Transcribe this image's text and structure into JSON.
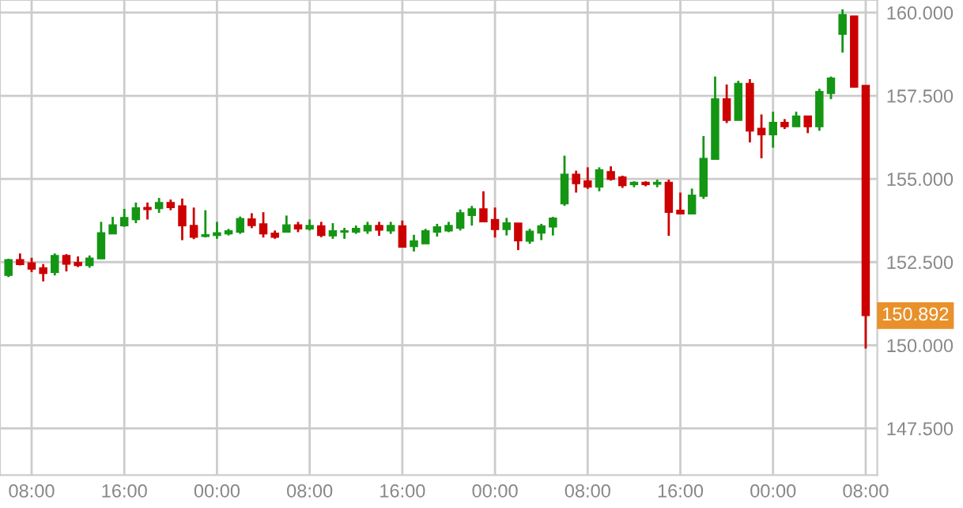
{
  "chart_data": {
    "type": "candlestick",
    "categories": [
      null,
      null,
      "08:00",
      null,
      null,
      null,
      null,
      null,
      null,
      null,
      "16:00",
      null,
      null,
      null,
      null,
      null,
      null,
      null,
      "00:00",
      null,
      null,
      null,
      null,
      null,
      null,
      null,
      "08:00",
      null,
      null,
      null,
      null,
      null,
      null,
      null,
      "16:00",
      null,
      null,
      null,
      null,
      null,
      null,
      null,
      "00:00",
      null,
      null,
      null,
      null,
      null,
      null,
      null,
      "08:00",
      null,
      null,
      null,
      null,
      null,
      null,
      null,
      "16:00",
      null,
      null,
      null,
      null,
      null,
      null,
      null,
      "00:00",
      null,
      null,
      null,
      null,
      null,
      null,
      null,
      "08:00"
    ],
    "ohlc": [
      [
        152.1,
        152.6,
        152.05,
        152.57
      ],
      [
        152.57,
        152.76,
        152.4,
        152.43
      ],
      [
        152.48,
        152.63,
        152.2,
        152.29
      ],
      [
        152.33,
        152.44,
        151.92,
        152.16
      ],
      [
        152.19,
        152.76,
        152.1,
        152.7
      ],
      [
        152.7,
        152.74,
        152.22,
        152.44
      ],
      [
        152.49,
        152.67,
        152.35,
        152.4
      ],
      [
        152.4,
        152.7,
        152.33,
        152.62
      ],
      [
        152.6,
        153.71,
        152.6,
        153.38
      ],
      [
        153.35,
        153.86,
        153.35,
        153.62
      ],
      [
        153.59,
        154.1,
        153.56,
        153.84
      ],
      [
        153.78,
        154.29,
        153.67,
        154.13
      ],
      [
        154.14,
        154.29,
        153.78,
        154.08
      ],
      [
        154.11,
        154.43,
        153.98,
        154.29
      ],
      [
        154.29,
        154.38,
        154.06,
        154.14
      ],
      [
        154.19,
        154.41,
        153.16,
        153.59
      ],
      [
        153.6,
        154.14,
        153.19,
        153.25
      ],
      [
        153.27,
        154.06,
        153.24,
        153.32
      ],
      [
        153.3,
        153.71,
        153.2,
        153.38
      ],
      [
        153.35,
        153.5,
        153.3,
        153.44
      ],
      [
        153.4,
        153.87,
        153.35,
        153.81
      ],
      [
        153.8,
        153.97,
        153.52,
        153.6
      ],
      [
        153.65,
        154.0,
        153.24,
        153.35
      ],
      [
        153.37,
        153.45,
        153.2,
        153.25
      ],
      [
        153.4,
        153.9,
        153.4,
        153.62
      ],
      [
        153.62,
        153.71,
        153.4,
        153.5
      ],
      [
        153.5,
        153.78,
        153.45,
        153.6
      ],
      [
        153.59,
        153.71,
        153.25,
        153.3
      ],
      [
        153.29,
        153.67,
        153.2,
        153.44
      ],
      [
        153.4,
        153.53,
        153.2,
        153.44
      ],
      [
        153.4,
        153.6,
        153.35,
        153.51
      ],
      [
        153.44,
        153.71,
        153.35,
        153.6
      ],
      [
        153.6,
        153.71,
        153.29,
        153.46
      ],
      [
        153.44,
        153.71,
        153.35,
        153.6
      ],
      [
        153.59,
        153.75,
        152.95,
        152.95
      ],
      [
        152.97,
        153.32,
        152.82,
        153.14
      ],
      [
        153.05,
        153.5,
        153.05,
        153.44
      ],
      [
        153.4,
        153.65,
        153.27,
        153.56
      ],
      [
        153.44,
        153.71,
        153.4,
        153.6
      ],
      [
        153.52,
        154.08,
        153.45,
        153.98
      ],
      [
        153.9,
        154.19,
        153.6,
        154.1
      ],
      [
        154.1,
        154.63,
        153.71,
        153.71
      ],
      [
        153.78,
        154.14,
        153.24,
        153.48
      ],
      [
        153.48,
        153.83,
        153.3,
        153.68
      ],
      [
        153.67,
        153.67,
        152.86,
        153.14
      ],
      [
        153.13,
        153.5,
        153.05,
        153.43
      ],
      [
        153.37,
        153.65,
        153.16,
        153.59
      ],
      [
        153.56,
        153.86,
        153.3,
        153.82
      ],
      [
        154.25,
        155.7,
        154.19,
        155.14
      ],
      [
        155.14,
        155.25,
        154.59,
        154.86
      ],
      [
        154.94,
        155.35,
        154.7,
        154.76
      ],
      [
        154.76,
        155.35,
        154.63,
        155.27
      ],
      [
        155.22,
        155.38,
        154.95,
        154.99
      ],
      [
        155.06,
        155.1,
        154.73,
        154.8
      ],
      [
        154.83,
        154.93,
        154.75,
        154.9
      ],
      [
        154.9,
        154.93,
        154.78,
        154.83
      ],
      [
        154.84,
        154.98,
        154.75,
        154.9
      ],
      [
        154.9,
        154.98,
        153.29,
        154.0
      ],
      [
        154.06,
        154.59,
        153.95,
        153.95
      ],
      [
        153.95,
        154.71,
        153.95,
        154.51
      ],
      [
        154.48,
        156.29,
        154.4,
        155.62
      ],
      [
        155.59,
        158.08,
        155.59,
        157.41
      ],
      [
        157.41,
        157.84,
        156.68,
        156.76
      ],
      [
        156.76,
        157.95,
        156.76,
        157.87
      ],
      [
        157.87,
        158.0,
        156.1,
        156.44
      ],
      [
        156.52,
        156.94,
        155.62,
        156.33
      ],
      [
        156.33,
        157.02,
        155.94,
        156.7
      ],
      [
        156.7,
        156.8,
        156.5,
        156.57
      ],
      [
        156.57,
        157.02,
        156.57,
        156.89
      ],
      [
        156.89,
        156.89,
        156.38,
        156.57
      ],
      [
        156.57,
        157.71,
        156.45,
        157.63
      ],
      [
        157.57,
        158.08,
        157.4,
        158.03
      ],
      [
        159.35,
        160.1,
        158.8,
        159.94
      ],
      [
        159.9,
        159.9,
        157.76,
        157.76
      ],
      [
        157.81,
        157.81,
        149.9,
        150.892
      ]
    ],
    "colors": [
      "#149614",
      "#cc0000",
      "#cc0000",
      "#cc0000",
      "#149614",
      "#cc0000",
      "#cc0000",
      "#149614",
      "#149614",
      "#149614",
      "#149614",
      "#149614",
      "#cc0000",
      "#149614",
      "#cc0000",
      "#cc0000",
      "#cc0000",
      "#149614",
      "#149614",
      "#149614",
      "#149614",
      "#cc0000",
      "#cc0000",
      "#cc0000",
      "#149614",
      "#cc0000",
      "#149614",
      "#cc0000",
      "#149614",
      "#149614",
      "#149614",
      "#149614",
      "#cc0000",
      "#149614",
      "#cc0000",
      "#149614",
      "#149614",
      "#149614",
      "#149614",
      "#149614",
      "#149614",
      "#cc0000",
      "#cc0000",
      "#149614",
      "#cc0000",
      "#149614",
      "#149614",
      "#149614",
      "#149614",
      "#cc0000",
      "#cc0000",
      "#149614",
      "#cc0000",
      "#cc0000",
      "#149614",
      "#cc0000",
      "#149614",
      "#cc0000",
      "#cc0000",
      "#149614",
      "#149614",
      "#149614",
      "#cc0000",
      "#149614",
      "#cc0000",
      "#cc0000",
      "#149614",
      "#cc0000",
      "#149614",
      "#cc0000",
      "#149614",
      "#149614",
      "#149614",
      "#cc0000",
      "#cc0000"
    ],
    "ylim": [
      146.1,
      160.38
    ],
    "yticks": [
      {
        "value": 147.5,
        "label": "147.500"
      },
      {
        "value": 150,
        "label": "150.000"
      },
      {
        "value": 152.5,
        "label": "152.500"
      },
      {
        "value": 155,
        "label": "155.000"
      },
      {
        "value": 157.5,
        "label": "157.500"
      },
      {
        "value": 160,
        "label": "160.000"
      }
    ],
    "grid": true,
    "annotations": [
      "150.892"
    ]
  }
}
